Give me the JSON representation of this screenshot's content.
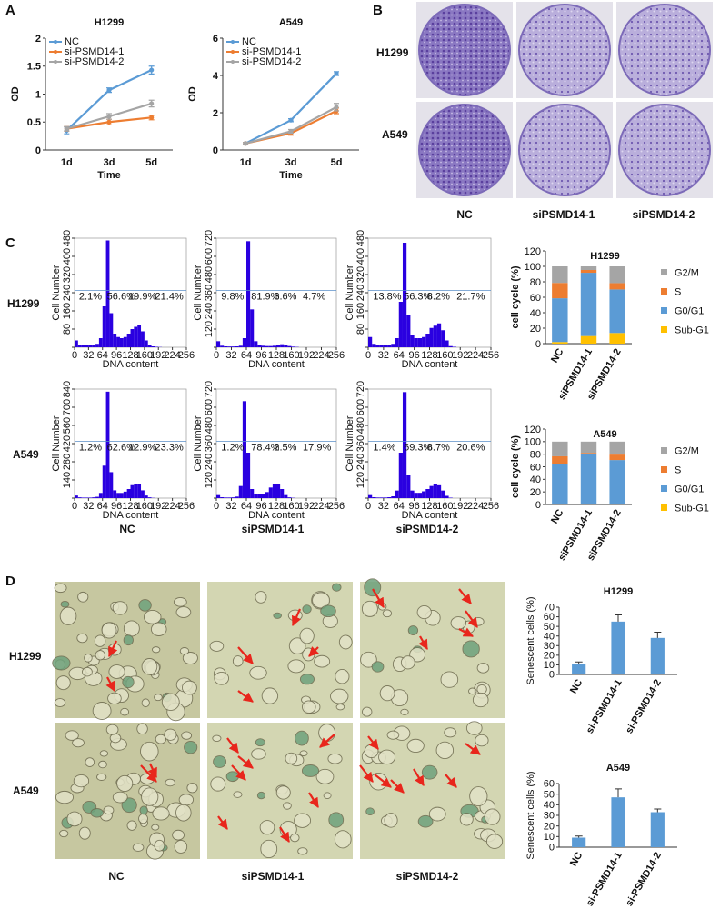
{
  "figure": {
    "panel_labels": [
      "A",
      "B",
      "C",
      "D"
    ],
    "colony_rows": [
      "H1299",
      "A549"
    ],
    "colony_columns": [
      "NC",
      "siPSMD14-1",
      "siPSMD14-2"
    ],
    "flow_rows": [
      "H1299",
      "A549"
    ],
    "flow_columns": [
      "NC",
      "siPSMD14-1",
      "siPSMD14-2"
    ],
    "sa_rows": [
      "H1299",
      "A549"
    ],
    "sa_columns": [
      "NC",
      "siPSMD14-1",
      "siPSMD14-2"
    ]
  },
  "chart_data": [
    {
      "type": "line",
      "title": "H1299",
      "x_label": "Time",
      "y_label": "OD",
      "categories": [
        "1d",
        "3d",
        "5d"
      ],
      "ylim": [
        0,
        2
      ],
      "yticks": [
        0,
        0.5,
        1,
        1.5,
        2
      ],
      "legend": "upper left",
      "series": [
        {
          "name": "NC",
          "color": "#5b9bd5",
          "values": [
            0.35,
            1.07,
            1.43
          ],
          "errors": [
            0.06,
            0.04,
            0.07
          ]
        },
        {
          "name": "si-PSMD14-1",
          "color": "#ed7d31",
          "values": [
            0.38,
            0.5,
            0.58
          ],
          "errors": [
            0.04,
            0.05,
            0.04
          ]
        },
        {
          "name": "si-PSMD14-2",
          "color": "#a5a5a5",
          "values": [
            0.38,
            0.6,
            0.83
          ],
          "errors": [
            0.04,
            0.05,
            0.06
          ]
        }
      ]
    },
    {
      "type": "line",
      "title": "A549",
      "x_label": "Time",
      "y_label": "OD",
      "categories": [
        "1d",
        "3d",
        "5d"
      ],
      "ylim": [
        0,
        6
      ],
      "yticks": [
        0,
        2,
        4,
        6
      ],
      "legend": "upper left",
      "series": [
        {
          "name": "NC",
          "color": "#5b9bd5",
          "values": [
            0.35,
            1.6,
            4.1
          ],
          "errors": [
            0.05,
            0.08,
            0.1
          ]
        },
        {
          "name": "si-PSMD14-1",
          "color": "#ed7d31",
          "values": [
            0.35,
            0.9,
            2.1
          ],
          "errors": [
            0.05,
            0.1,
            0.15
          ]
        },
        {
          "name": "si-PSMD14-2",
          "color": "#a5a5a5",
          "values": [
            0.35,
            1.0,
            2.3
          ],
          "errors": [
            0.05,
            0.1,
            0.2
          ]
        }
      ]
    },
    {
      "type": "histogram",
      "x_label": "DNA content",
      "y_label": "Cell Number",
      "color": "#2a00e0",
      "bins": [
        0,
        8,
        16,
        24,
        32,
        40,
        48,
        56,
        64,
        72,
        80,
        88,
        96,
        104,
        112,
        120,
        128,
        136,
        144,
        152,
        160,
        168,
        176,
        184,
        192,
        200,
        208,
        216,
        224,
        232,
        240,
        248,
        256
      ],
      "counts": [
        30,
        12,
        8,
        8,
        8,
        10,
        15,
        40,
        180,
        470,
        150,
        60,
        45,
        40,
        45,
        60,
        80,
        90,
        100,
        70,
        30,
        8,
        4,
        2,
        1,
        0,
        0,
        0,
        0,
        0,
        0,
        0
      ],
      "xlim": [
        0,
        256
      ],
      "xticks": [
        0,
        32,
        64,
        96,
        128,
        160,
        192,
        224,
        256
      ],
      "ylim": [
        0,
        480
      ],
      "yticks": [
        0,
        80,
        160,
        240,
        320,
        400,
        480
      ],
      "annotations": [
        "2.1%",
        "56.6%",
        "19.9%",
        "21.4%"
      ]
    },
    {
      "type": "histogram",
      "x_label": "DNA content",
      "y_label": "Cell Number",
      "color": "#2a00e0",
      "bins": [
        0,
        8,
        16,
        24,
        32,
        40,
        48,
        56,
        64,
        72,
        80,
        88,
        96,
        104,
        112,
        120,
        128,
        136,
        144,
        152,
        160,
        168,
        176,
        184,
        192,
        200,
        208,
        216,
        224,
        232,
        240,
        248,
        256
      ],
      "counts": [
        40,
        10,
        6,
        5,
        5,
        6,
        10,
        60,
        700,
        250,
        40,
        15,
        10,
        8,
        8,
        10,
        15,
        20,
        15,
        8,
        4,
        2,
        0,
        0,
        0,
        0,
        0,
        0,
        0,
        0,
        0,
        0
      ],
      "xlim": [
        0,
        256
      ],
      "xticks": [
        0,
        32,
        64,
        96,
        128,
        160,
        192,
        224,
        256
      ],
      "ylim": [
        0,
        720
      ],
      "yticks": [
        0,
        120,
        240,
        360,
        480,
        600,
        720
      ],
      "annotations": [
        "9.8%",
        "81.9%",
        "3.6%",
        "4.7%"
      ]
    },
    {
      "type": "histogram",
      "x_label": "DNA content",
      "y_label": "Cell Number",
      "color": "#2a00e0",
      "bins": [
        0,
        8,
        16,
        24,
        32,
        40,
        48,
        56,
        64,
        72,
        80,
        88,
        96,
        104,
        112,
        120,
        128,
        136,
        144,
        152,
        160,
        168,
        176,
        184,
        192,
        200,
        208,
        216,
        224,
        232,
        240,
        248,
        256
      ],
      "counts": [
        45,
        15,
        10,
        8,
        8,
        10,
        15,
        40,
        200,
        460,
        140,
        55,
        40,
        40,
        45,
        60,
        85,
        95,
        105,
        75,
        30,
        5,
        2,
        0,
        0,
        0,
        0,
        0,
        0,
        0,
        0,
        0
      ],
      "xlim": [
        0,
        256
      ],
      "xticks": [
        0,
        32,
        64,
        96,
        128,
        160,
        192,
        224,
        256
      ],
      "ylim": [
        0,
        480
      ],
      "yticks": [
        0,
        80,
        160,
        240,
        320,
        400,
        480
      ],
      "annotations": [
        "13.8%",
        "56.3%",
        "8.2%",
        "21.7%"
      ]
    },
    {
      "type": "histogram",
      "x_label": "DNA content",
      "y_label": "Cell Number",
      "color": "#2a00e0",
      "bins": [
        0,
        8,
        16,
        24,
        32,
        40,
        48,
        56,
        64,
        72,
        80,
        88,
        96,
        104,
        112,
        120,
        128,
        136,
        144,
        152,
        160,
        168,
        176,
        184,
        192,
        200,
        208,
        216,
        224,
        232,
        240,
        248,
        256
      ],
      "counts": [
        20,
        6,
        4,
        4,
        4,
        6,
        10,
        40,
        250,
        820,
        200,
        60,
        40,
        40,
        50,
        70,
        100,
        105,
        110,
        60,
        20,
        6,
        2,
        0,
        0,
        0,
        0,
        0,
        0,
        0,
        0,
        0
      ],
      "xlim": [
        0,
        256
      ],
      "xticks": [
        0,
        32,
        64,
        96,
        128,
        160,
        192,
        224,
        256
      ],
      "ylim": [
        0,
        840
      ],
      "yticks": [
        0,
        140,
        280,
        420,
        560,
        700,
        840
      ],
      "annotations": [
        "1.2%",
        "62.6%",
        "12.9%",
        "23.3%"
      ]
    },
    {
      "type": "histogram",
      "x_label": "DNA content",
      "y_label": "Cell Number",
      "color": "#2a00e0",
      "bins": [
        0,
        8,
        16,
        24,
        32,
        40,
        48,
        56,
        64,
        72,
        80,
        88,
        96,
        104,
        112,
        120,
        128,
        136,
        144,
        152,
        160,
        168,
        176,
        184,
        192,
        200,
        208,
        216,
        224,
        232,
        240,
        248,
        256
      ],
      "counts": [
        20,
        6,
        4,
        4,
        5,
        10,
        80,
        640,
        300,
        60,
        30,
        25,
        30,
        40,
        70,
        90,
        90,
        60,
        20,
        5,
        2,
        0,
        0,
        0,
        0,
        0,
        0,
        0,
        0,
        0,
        0,
        0
      ],
      "xlim": [
        0,
        256
      ],
      "xticks": [
        0,
        32,
        64,
        96,
        128,
        160,
        192,
        224,
        256
      ],
      "ylim": [
        0,
        720
      ],
      "yticks": [
        0,
        120,
        240,
        360,
        480,
        600,
        720
      ],
      "annotations": [
        "1.2%",
        "78.4%",
        "2.5%",
        "17.9%"
      ]
    },
    {
      "type": "histogram",
      "x_label": "DNA content",
      "y_label": "Cell Number",
      "color": "#2a00e0",
      "bins": [
        0,
        8,
        16,
        24,
        32,
        40,
        48,
        56,
        64,
        72,
        80,
        88,
        96,
        104,
        112,
        120,
        128,
        136,
        144,
        152,
        160,
        168,
        176,
        184,
        192,
        200,
        208,
        216,
        224,
        232,
        240,
        248,
        256
      ],
      "counts": [
        20,
        6,
        4,
        4,
        4,
        6,
        12,
        50,
        300,
        700,
        150,
        50,
        35,
        35,
        45,
        60,
        80,
        90,
        85,
        50,
        15,
        3,
        0,
        0,
        0,
        0,
        0,
        0,
        0,
        0,
        0,
        0
      ],
      "xlim": [
        0,
        256
      ],
      "xticks": [
        0,
        32,
        64,
        96,
        128,
        160,
        192,
        224,
        256
      ],
      "ylim": [
        0,
        720
      ],
      "yticks": [
        0,
        120,
        240,
        360,
        480,
        600,
        720
      ],
      "annotations": [
        "1.4%",
        "69.3%",
        "8.7%",
        "20.6%"
      ]
    },
    {
      "type": "bar",
      "stacked": true,
      "title": "H1299",
      "y_label": "cell cycle (%)",
      "categories": [
        "NC",
        "siPSMD14-1",
        "siPSMD14-2"
      ],
      "ylim": [
        0,
        120
      ],
      "yticks": [
        0,
        20,
        40,
        60,
        80,
        100,
        120
      ],
      "series": [
        {
          "name": "Sub-G1",
          "color": "#ffc000",
          "values": [
            2.1,
            9.8,
            13.8
          ]
        },
        {
          "name": "G0/G1",
          "color": "#5b9bd5",
          "values": [
            56.6,
            81.9,
            56.3
          ]
        },
        {
          "name": "S",
          "color": "#ed7d31",
          "values": [
            19.9,
            3.6,
            8.2
          ]
        },
        {
          "name": "G2/M",
          "color": "#a5a5a5",
          "values": [
            21.4,
            4.7,
            21.7
          ]
        }
      ]
    },
    {
      "type": "bar",
      "stacked": true,
      "title": "A549",
      "y_label": "cell cycle (%)",
      "categories": [
        "NC",
        "siPSMD14-1",
        "siPSMD14-2"
      ],
      "ylim": [
        0,
        120
      ],
      "yticks": [
        0,
        20,
        40,
        60,
        80,
        100,
        120
      ],
      "series": [
        {
          "name": "Sub-G1",
          "color": "#ffc000",
          "values": [
            1.2,
            1.2,
            1.4
          ]
        },
        {
          "name": "G0/G1",
          "color": "#5b9bd5",
          "values": [
            62.6,
            78.4,
            69.3
          ]
        },
        {
          "name": "S",
          "color": "#ed7d31",
          "values": [
            12.9,
            2.5,
            8.7
          ]
        },
        {
          "name": "G2/M",
          "color": "#a5a5a5",
          "values": [
            23.3,
            17.9,
            20.6
          ]
        }
      ]
    },
    {
      "type": "bar",
      "title": "H1299",
      "y_label": "Senescent cells (%)",
      "color": "#5b9bd5",
      "categories": [
        "NC",
        "si-PSMD14-1",
        "si-PSMD14-2"
      ],
      "values": [
        11,
        55,
        38
      ],
      "errors": [
        2,
        7,
        6
      ],
      "ylim": [
        0,
        70
      ],
      "yticks": [
        0,
        10,
        20,
        30,
        40,
        50,
        60,
        70
      ]
    },
    {
      "type": "bar",
      "title": "A549",
      "y_label": "Senescent cells (%)",
      "color": "#5b9bd5",
      "categories": [
        "NC",
        "si-PSMD14-1",
        "si-PSMD14-2"
      ],
      "values": [
        9,
        47,
        33
      ],
      "errors": [
        1.5,
        8,
        3
      ],
      "ylim": [
        0,
        60
      ],
      "yticks": [
        0,
        10,
        20,
        30,
        40,
        50,
        60
      ]
    }
  ]
}
